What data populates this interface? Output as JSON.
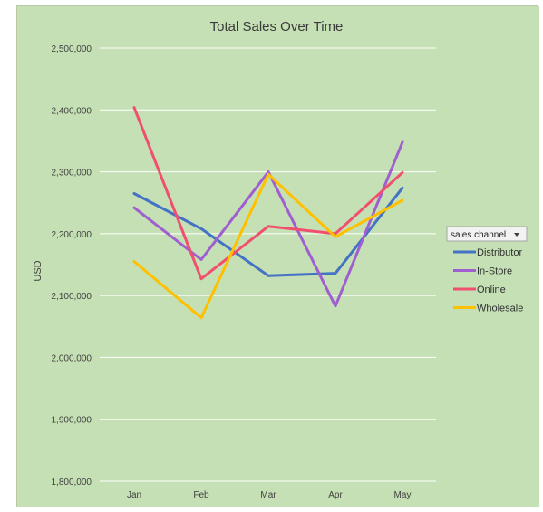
{
  "chart_data": {
    "type": "line",
    "title": "Total Sales Over Time",
    "ylabel": "USD",
    "xlabel": "",
    "categories": [
      "Jan",
      "Feb",
      "Mar",
      "Apr",
      "May"
    ],
    "ylim": [
      1800000,
      2500000
    ],
    "yticks": [
      1800000,
      1900000,
      2000000,
      2100000,
      2200000,
      2300000,
      2400000,
      2500000
    ],
    "ytick_labels": [
      "1,800,000",
      "1,900,000",
      "2,000,000",
      "2,100,000",
      "2,200,000",
      "2,300,000",
      "2,400,000",
      "2,500,000"
    ],
    "grid": true,
    "legend_title": "sales channel",
    "legend_placement": "right",
    "series": [
      {
        "name": "Distributor",
        "color": "#4472c4",
        "values": [
          2265000,
          2208000,
          2132000,
          2136000,
          2274000
        ]
      },
      {
        "name": "In-Store",
        "color": "#a05fd0",
        "values": [
          2242000,
          2158000,
          2300000,
          2083000,
          2348000
        ]
      },
      {
        "name": "Online",
        "color": "#f0506e",
        "values": [
          2404000,
          2127000,
          2212000,
          2200000,
          2299000
        ]
      },
      {
        "name": "Wholesale",
        "color": "#ffc000",
        "values": [
          2155000,
          2064000,
          2296000,
          2195000,
          2254000
        ]
      }
    ]
  },
  "colors": {
    "plot_background": "#c5e0b4",
    "gridline": "#ffffff"
  },
  "icons": {
    "legend_filter": "dropdown-arrow-icon"
  }
}
